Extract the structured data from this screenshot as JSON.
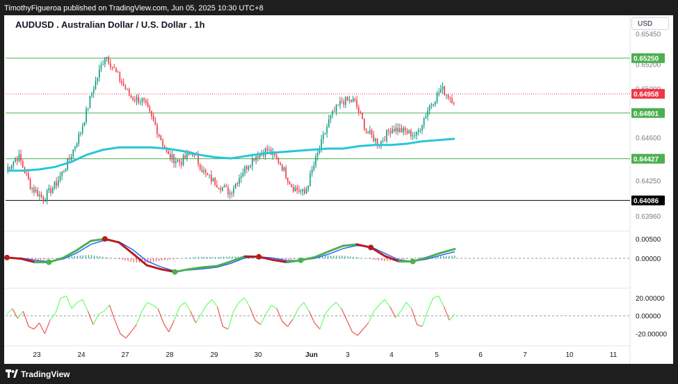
{
  "header": {
    "published_text": "TimothyFigueroa published on TradingView.com, Jun 05, 2025 10:30 UTC+8"
  },
  "chart_header": {
    "title": "AUDUSD . Australian Dollar / U.S. Dollar . 1h",
    "currency_button": "USD"
  },
  "footer": {
    "brand": "TradingView"
  },
  "colors": {
    "up": "#089981",
    "down": "#f23645",
    "ma": "#26c6da",
    "green_line": "#4caf50",
    "black_line": "#000000",
    "osc_fast_up": "#4caf50",
    "osc_fast_down": "#b71c1c",
    "osc_slow": "#2962ff",
    "osc2_up": "#66ff66",
    "osc2_down": "#ef5350"
  },
  "chart_data": [
    {
      "type": "candlestick",
      "title": "AUDUSD . Australian Dollar / U.S. Dollar . 1h",
      "ylim": [
        0.6384,
        0.6543
      ],
      "x_tick_labels": [
        "23",
        "24",
        "27",
        "28",
        "29",
        "30",
        "Jun",
        "3",
        "4",
        "5",
        "6",
        "7",
        "10",
        "11"
      ],
      "y_tick_labels": [
        "0.65450",
        "0.65200",
        "0.65000",
        "0.64600",
        "0.64250",
        "0.63960"
      ],
      "price_lines": [
        {
          "value": 0.6525,
          "label": "0.65250",
          "color": "#4caf50"
        },
        {
          "value": 0.64958,
          "label": "0.64958",
          "color": "#f23645",
          "style": "dotted"
        },
        {
          "value": 0.64801,
          "label": "0.64801",
          "color": "#4caf50"
        },
        {
          "value": 0.64427,
          "label": "0.64427",
          "color": "#4caf50"
        },
        {
          "value": 0.64086,
          "label": "0.64086",
          "color": "#000000"
        }
      ],
      "price_anchors": [
        0.6434,
        0.6445,
        0.642,
        0.641,
        0.6422,
        0.644,
        0.6465,
        0.65,
        0.6528,
        0.651,
        0.6493,
        0.649,
        0.647,
        0.6445,
        0.644,
        0.6448,
        0.643,
        0.6422,
        0.6415,
        0.6432,
        0.6445,
        0.645,
        0.644,
        0.642,
        0.6414,
        0.6445,
        0.6475,
        0.649,
        0.649,
        0.6465,
        0.6455,
        0.6468,
        0.6465,
        0.6462,
        0.6485,
        0.65,
        0.649
      ],
      "moving_average": [
        0.6433,
        0.6433,
        0.6434,
        0.6436,
        0.644,
        0.6446,
        0.645,
        0.6452,
        0.6452,
        0.6452,
        0.6451,
        0.6449,
        0.6446,
        0.6444,
        0.6443,
        0.6445,
        0.6447,
        0.6448,
        0.6449,
        0.645,
        0.6451,
        0.6451,
        0.6453,
        0.6454,
        0.6454,
        0.6455,
        0.6457,
        0.6458,
        0.6459
      ],
      "candle_count": 240
    },
    {
      "type": "oscillator",
      "ylim": [
        -0.0075,
        0.0068
      ],
      "y_tick_labels": [
        "0.00500",
        "0.00000"
      ],
      "fast_line": [
        0.0002,
        -0.0001,
        -0.001,
        -0.001,
        0.0001,
        0.0021,
        0.0045,
        0.005,
        0.0041,
        0.0012,
        -0.0018,
        -0.0028,
        -0.0035,
        -0.0028,
        -0.0023,
        -0.002,
        -0.0008,
        0.0005,
        0.0004,
        -0.0004,
        -0.001,
        -0.0005,
        0.0003,
        0.0018,
        0.0032,
        0.0036,
        0.0028,
        0.0006,
        -0.0008,
        -0.0008,
        0.0002,
        0.0014,
        0.0024
      ],
      "slow_line": [
        0.0001,
        0.0001,
        -0.0005,
        -0.0008,
        -0.0002,
        0.0014,
        0.0036,
        0.0047,
        0.0043,
        0.0022,
        -0.0007,
        -0.0022,
        -0.0033,
        -0.003,
        -0.0027,
        -0.0023,
        -0.0013,
        0.0001,
        0.0004,
        0.0001,
        -0.0006,
        -0.0005,
        0.0,
        0.0011,
        0.0025,
        0.0033,
        0.003,
        0.0013,
        -0.0004,
        -0.0008,
        -0.0002,
        0.0008,
        0.0017
      ],
      "cross_points": [
        {
          "index": 0,
          "color": "#b71c1c"
        },
        {
          "index": 3,
          "color": "#4caf50"
        },
        {
          "index": 7,
          "color": "#b71c1c"
        },
        {
          "index": 12,
          "color": "#4caf50"
        },
        {
          "index": 18,
          "color": "#b71c1c"
        },
        {
          "index": 21,
          "color": "#4caf50"
        },
        {
          "index": 26,
          "color": "#b71c1c"
        },
        {
          "index": 29,
          "color": "#4caf50"
        }
      ]
    },
    {
      "type": "oscillator",
      "ylim": [
        -32,
        30
      ],
      "y_tick_labels": [
        "20.00000",
        "0.00000",
        "-20.00000"
      ],
      "values": [
        2,
        8,
        -3,
        5,
        -12,
        -15,
        -8,
        -20,
        -5,
        3,
        20,
        22,
        8,
        15,
        18,
        5,
        -10,
        2,
        5,
        12,
        -5,
        -20,
        -25,
        -18,
        -10,
        5,
        15,
        12,
        8,
        -8,
        -18,
        -5,
        10,
        15,
        5,
        -8,
        2,
        12,
        18,
        10,
        -12,
        -15,
        5,
        15,
        20,
        10,
        -5,
        -10,
        2,
        12,
        8,
        -6,
        -12,
        -4,
        8,
        15,
        5,
        -8,
        -15,
        2,
        10,
        15,
        8,
        -5,
        -18,
        -22,
        -15,
        -8,
        5,
        12,
        18,
        10,
        -2,
        5,
        15,
        8,
        -10,
        -12,
        6,
        20,
        22,
        10,
        -5,
        2
      ]
    }
  ]
}
